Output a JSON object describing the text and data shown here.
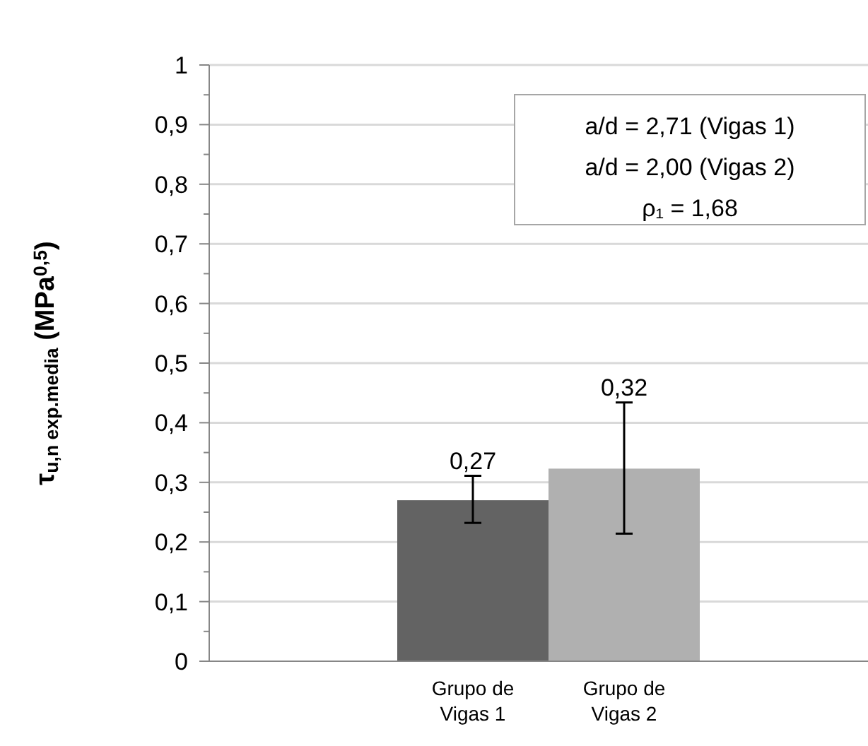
{
  "chart_data": {
    "type": "bar",
    "ylabel": "τ$_{u,n exp.media}$ (MPa$^{0,5}$)",
    "categories": [
      "Grupo de Vigas 1",
      "Grupo de Vigas 2"
    ],
    "values": [
      0.27,
      0.323
    ],
    "colors": [
      "#636363",
      "#b0b0b0"
    ],
    "errors": [
      [
        0.232,
        0.311
      ],
      [
        0.214,
        0.434
      ]
    ],
    "value_labels": [
      "0,27",
      "0,32"
    ],
    "ylim": [
      0,
      1
    ],
    "yticks": [
      {
        "value": 0,
        "label": "0"
      },
      {
        "value": 0.05,
        "label": null
      },
      {
        "value": 0.1,
        "label": "0,1"
      },
      {
        "value": 0.15,
        "label": null
      },
      {
        "value": 0.2,
        "label": "0,2"
      },
      {
        "value": 0.25,
        "label": null
      },
      {
        "value": 0.3,
        "label": "0,3"
      },
      {
        "value": 0.35,
        "label": null
      },
      {
        "value": 0.4,
        "label": "0,4"
      },
      {
        "value": 0.45,
        "label": null
      },
      {
        "value": 0.5,
        "label": "0,5"
      },
      {
        "value": 0.55,
        "label": null
      },
      {
        "value": 0.6,
        "label": "0,6"
      },
      {
        "value": 0.65,
        "label": null
      },
      {
        "value": 0.7,
        "label": "0,7"
      },
      {
        "value": 0.75,
        "label": null
      },
      {
        "value": 0.8,
        "label": "0,8"
      },
      {
        "value": 0.85,
        "label": null
      },
      {
        "value": 0.9,
        "label": "0,9"
      },
      {
        "value": 0.95,
        "label": null
      },
      {
        "value": 1,
        "label": "1"
      }
    ],
    "grid": "y",
    "annotations": [
      "a/d = 2,71 (Vigas 1)",
      "a/d = 2,00 (Vigas 2)",
      "ρ₁ = 1,68"
    ]
  }
}
